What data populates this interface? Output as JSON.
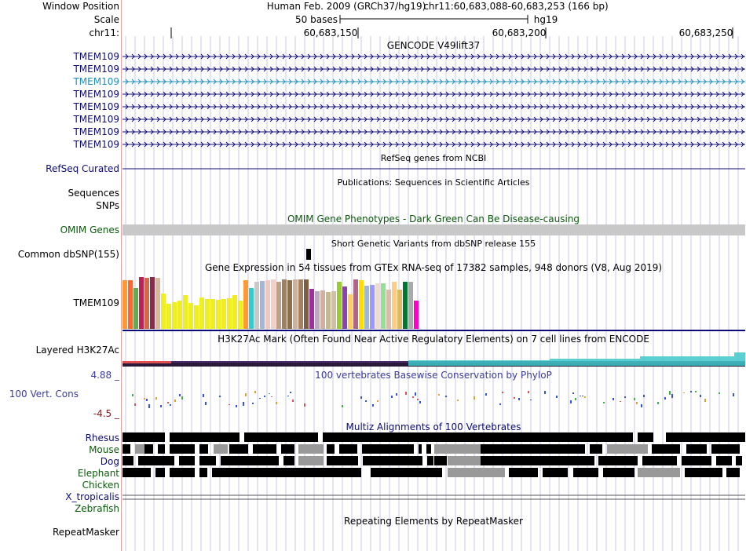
{
  "header": {
    "window_position_label": "Window Position",
    "scale_label": "Scale",
    "chrom_label": "chr11:",
    "assembly": "Human Feb. 2009 (GRCh37/hg19)",
    "position": "chr11:60,683,088-60,683,253 (166 bp)",
    "scale_text": "50 bases",
    "scale_db": "hg19",
    "ticks": [
      "60,683,150",
      "60,683,200",
      "60,683,250"
    ]
  },
  "gencode": {
    "title": "GENCODE V49lift37",
    "genes": [
      "TMEM109",
      "TMEM109",
      "TMEM109",
      "TMEM109",
      "TMEM109",
      "TMEM109",
      "TMEM109",
      "TMEM109"
    ],
    "highlighted_index": 2
  },
  "refseq": {
    "title": "RefSeq genes from NCBI",
    "label": "RefSeq Curated"
  },
  "publications": {
    "title": "Publications: Sequences in Scientific Articles",
    "label1": "Sequences",
    "label2": "SNPs"
  },
  "omim": {
    "title": "OMIM Gene Phenotypes - Dark Green Can Be Disease-causing",
    "label": "OMIM Genes"
  },
  "dbsnp": {
    "title": "Short Genetic Variants from dbSNP release 155",
    "label": "Common dbSNP(155)"
  },
  "gtex": {
    "title": "Gene Expression in 54 tissues from GTEx RNA-seq of 17382 samples, 948 donors (V8, Aug 2019)",
    "label": "TMEM109",
    "bar_values": [
      0.62,
      0.62,
      0.52,
      0.66,
      0.65,
      0.66,
      0.65,
      0.45,
      0.32,
      0.34,
      0.36,
      0.43,
      0.33,
      0.3,
      0.4,
      0.38,
      0.38,
      0.37,
      0.38,
      0.39,
      0.43,
      0.36,
      0.62,
      0.52,
      0.6,
      0.61,
      0.62,
      0.63,
      0.6,
      0.63,
      0.62,
      0.63,
      0.63,
      0.63,
      0.51,
      0.48,
      0.49,
      0.47,
      0.48,
      0.6,
      0.54,
      0.44,
      0.63,
      0.62,
      0.55,
      0.56,
      0.58,
      0.58,
      0.5,
      0.6,
      0.5,
      0.6,
      0.6,
      0.36
    ],
    "bar_colors": [
      "#ff9a33",
      "#ff6633",
      "#66aa55",
      "#bb2255",
      "#d06a4a",
      "#8b2a4a",
      "#d4b8a0",
      "#eeee22",
      "#eeee22",
      "#eeee22",
      "#eeee22",
      "#eeee22",
      "#eeee22",
      "#eeee22",
      "#eeee22",
      "#eeee22",
      "#eeee22",
      "#eeee22",
      "#eeee22",
      "#eeee22",
      "#eeee22",
      "#eeee22",
      "#ff9a33",
      "#33cccc",
      "#c8c8c8",
      "#a3b5d8",
      "#efc8c0",
      "#f0d0c8",
      "#c0a088",
      "#a08060",
      "#8c6f4c",
      "#cfb19b",
      "#a58062",
      "#7f5f42",
      "#993399",
      "#bbaabb",
      "#d0b0a0",
      "#c8b890",
      "#cfc0a8",
      "#99cc33",
      "#8844aa",
      "#ffcc66",
      "#b06688",
      "#ffdd00",
      "#a0b8d8",
      "#9999ff",
      "#eeddcc",
      "#99dd99",
      "#ddbbaa",
      "#ffcc88",
      "#ddbb66",
      "#007733",
      "#aaaaaa",
      "#ff00cc"
    ]
  },
  "h3k27ac": {
    "title": "H3K27Ac Mark (Often Found Near Active Regulatory Elements) on 7 cell lines from ENCODE",
    "label": "Layered H3K27Ac"
  },
  "conservation": {
    "title": "100 vertebrates Basewise Conservation by PhyloP",
    "label": "100 Vert. Cons",
    "max": "4.88 _",
    "min": "-4.5 _"
  },
  "multiz": {
    "title": "Multiz Alignments of 100 Vertebrates",
    "species": [
      "Rhesus",
      "Mouse",
      "Dog",
      "Elephant",
      "Chicken",
      "X_tropicalis",
      "Zebrafish"
    ]
  },
  "repeats": {
    "title": "Repeating Elements by RepeatMasker",
    "label": "RepeatMasker"
  },
  "colors": {
    "gene": "#0c0c78",
    "gene_highlight": "#1a8fbf",
    "omim_bar": "#c8c8c8",
    "grid": "#c8c8e8",
    "divider": "#e8a0a0"
  }
}
